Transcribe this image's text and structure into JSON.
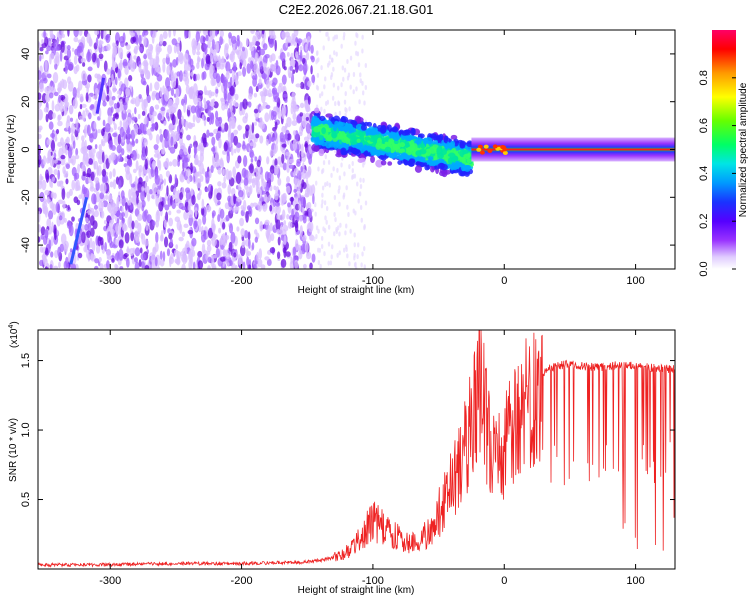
{
  "title": "C2E2.2026.067.21.18.G01",
  "chart_data": [
    {
      "type": "heatmap",
      "xlabel": "Height of straight line (km)",
      "ylabel": "Frequency (Hz)",
      "xlim": [
        -355,
        130
      ],
      "ylim": [
        -50,
        50
      ],
      "xticks": [
        -300,
        -200,
        -100,
        0,
        100
      ],
      "xtick_labels": [
        "-300",
        "-200",
        "-100",
        "0",
        "100"
      ],
      "yticks": [
        -40,
        -20,
        0,
        20,
        40
      ],
      "ytick_labels": [
        "-40",
        "-20",
        "0",
        "20",
        "40"
      ],
      "colorbar": {
        "label": "Normalized spectral amplitude",
        "range": [
          0.0,
          1.0
        ],
        "ticks": [
          0.0,
          0.2,
          0.4,
          0.6,
          0.8
        ],
        "tick_labels": [
          "0.0",
          "0.2",
          "0.4",
          "0.6",
          "0.8"
        ],
        "colormap": [
          "#ffffff",
          "#cc99ff",
          "#7a1ee6",
          "#3300ff",
          "#0066ff",
          "#00ccff",
          "#00ff99",
          "#66ff00",
          "#ffff00",
          "#ff9900",
          "#ff0000",
          "#ff0066"
        ]
      },
      "regions": [
        {
          "name": "noise",
          "x_range": [
            -355,
            -145
          ],
          "freq_range": [
            -50,
            50
          ],
          "amplitude": 0.1
        },
        {
          "name": "transition",
          "x_range": [
            -145,
            -25
          ],
          "freq_center": [
            8,
            -4
          ],
          "freq_halfwidth": 10,
          "amplitude": 0.35
        },
        {
          "name": "signal",
          "x_range": [
            -25,
            130
          ],
          "freq_center": 0,
          "freq_halfwidth": 2.5,
          "amplitude": 0.95
        }
      ]
    },
    {
      "type": "line",
      "xlabel": "Height of straight line (km)",
      "ylabel": "SNR (10 * v/v)",
      "multiplier": "(x10",
      "multiplier_exp": "4",
      "multiplier_close": ")",
      "xlim": [
        -355,
        130
      ],
      "ylim": [
        0,
        1.72
      ],
      "xticks": [
        -300,
        -200,
        -100,
        0,
        100
      ],
      "xtick_labels": [
        "-300",
        "-200",
        "-100",
        "0",
        "100"
      ],
      "yticks": [
        0.5,
        1.0,
        1.5
      ],
      "ytick_labels": [
        "0.5",
        "1.0",
        "1.5"
      ],
      "color": "#ee2222",
      "series": [
        {
          "name": "SNR",
          "x": [
            -355,
            -300,
            -250,
            -200,
            -150,
            -130,
            -115,
            -105,
            -100,
            -95,
            -90,
            -85,
            -80,
            -75,
            -70,
            -65,
            -60,
            -55,
            -50,
            -45,
            -40,
            -35,
            -30,
            -25,
            -20,
            -17,
            -15,
            -12,
            -10,
            -7,
            -5,
            -2,
            0,
            5,
            10,
            15,
            20,
            25,
            30,
            35,
            40,
            50,
            60,
            70,
            80,
            90,
            100,
            110,
            120,
            130
          ],
          "y": [
            0.03,
            0.03,
            0.04,
            0.04,
            0.05,
            0.08,
            0.15,
            0.28,
            0.35,
            0.32,
            0.28,
            0.25,
            0.22,
            0.2,
            0.18,
            0.2,
            0.24,
            0.3,
            0.4,
            0.5,
            0.6,
            0.75,
            0.9,
            1.0,
            1.2,
            1.55,
            1.25,
            0.95,
            0.85,
            0.75,
            0.78,
            0.85,
            0.9,
            1.0,
            1.1,
            1.2,
            1.3,
            1.38,
            1.42,
            1.45,
            1.46,
            1.48,
            1.46,
            1.45,
            1.46,
            1.47,
            1.46,
            1.45,
            1.44,
            1.44
          ]
        }
      ]
    }
  ]
}
